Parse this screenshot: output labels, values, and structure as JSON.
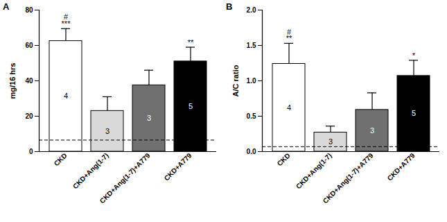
{
  "chart_data": [
    {
      "type": "bar",
      "title": "A",
      "y_label": "mg/16 hrs",
      "categories": [
        "CKD",
        "CKD+Ang(1-7)",
        "CKD+Ang(1-7)+A779",
        "CKD+A779"
      ],
      "values": [
        62.5,
        23,
        37.5,
        51
      ],
      "errors": [
        7,
        8,
        8.5,
        8
      ],
      "n": [
        4,
        3,
        3,
        5
      ],
      "significance": [
        [
          "#",
          "***"
        ],
        [],
        [],
        [
          "**"
        ]
      ],
      "reference_line": 6.5,
      "colors": [
        "#ffffff",
        "#d9d9d9",
        "#707070",
        "#000000"
      ],
      "ylim": [
        0,
        80
      ],
      "yticks": [
        0,
        20,
        40,
        60,
        80
      ]
    },
    {
      "type": "bar",
      "title": "B",
      "y_label": "A/C ratio",
      "categories": [
        "CKD",
        "CKD+Ang(1-7)",
        "CKD+Ang(1-7)+A779",
        "CKD+A779"
      ],
      "values": [
        1.24,
        0.27,
        0.59,
        1.07
      ],
      "errors": [
        0.29,
        0.09,
        0.24,
        0.22
      ],
      "n": [
        4,
        3,
        3,
        5
      ],
      "significance": [
        [
          "#",
          "**"
        ],
        [],
        [],
        [
          "*"
        ]
      ],
      "reference_line": 0.07,
      "colors": [
        "#ffffff",
        "#d9d9d9",
        "#707070",
        "#000000"
      ],
      "ylim": [
        0,
        2
      ],
      "yticks": [
        {
          "value": 0,
          "label": "0.0"
        },
        0.5,
        {
          "value": 1,
          "label": "1.0"
        },
        1.5,
        {
          "value": 2,
          "label": "2.0"
        }
      ]
    }
  ]
}
